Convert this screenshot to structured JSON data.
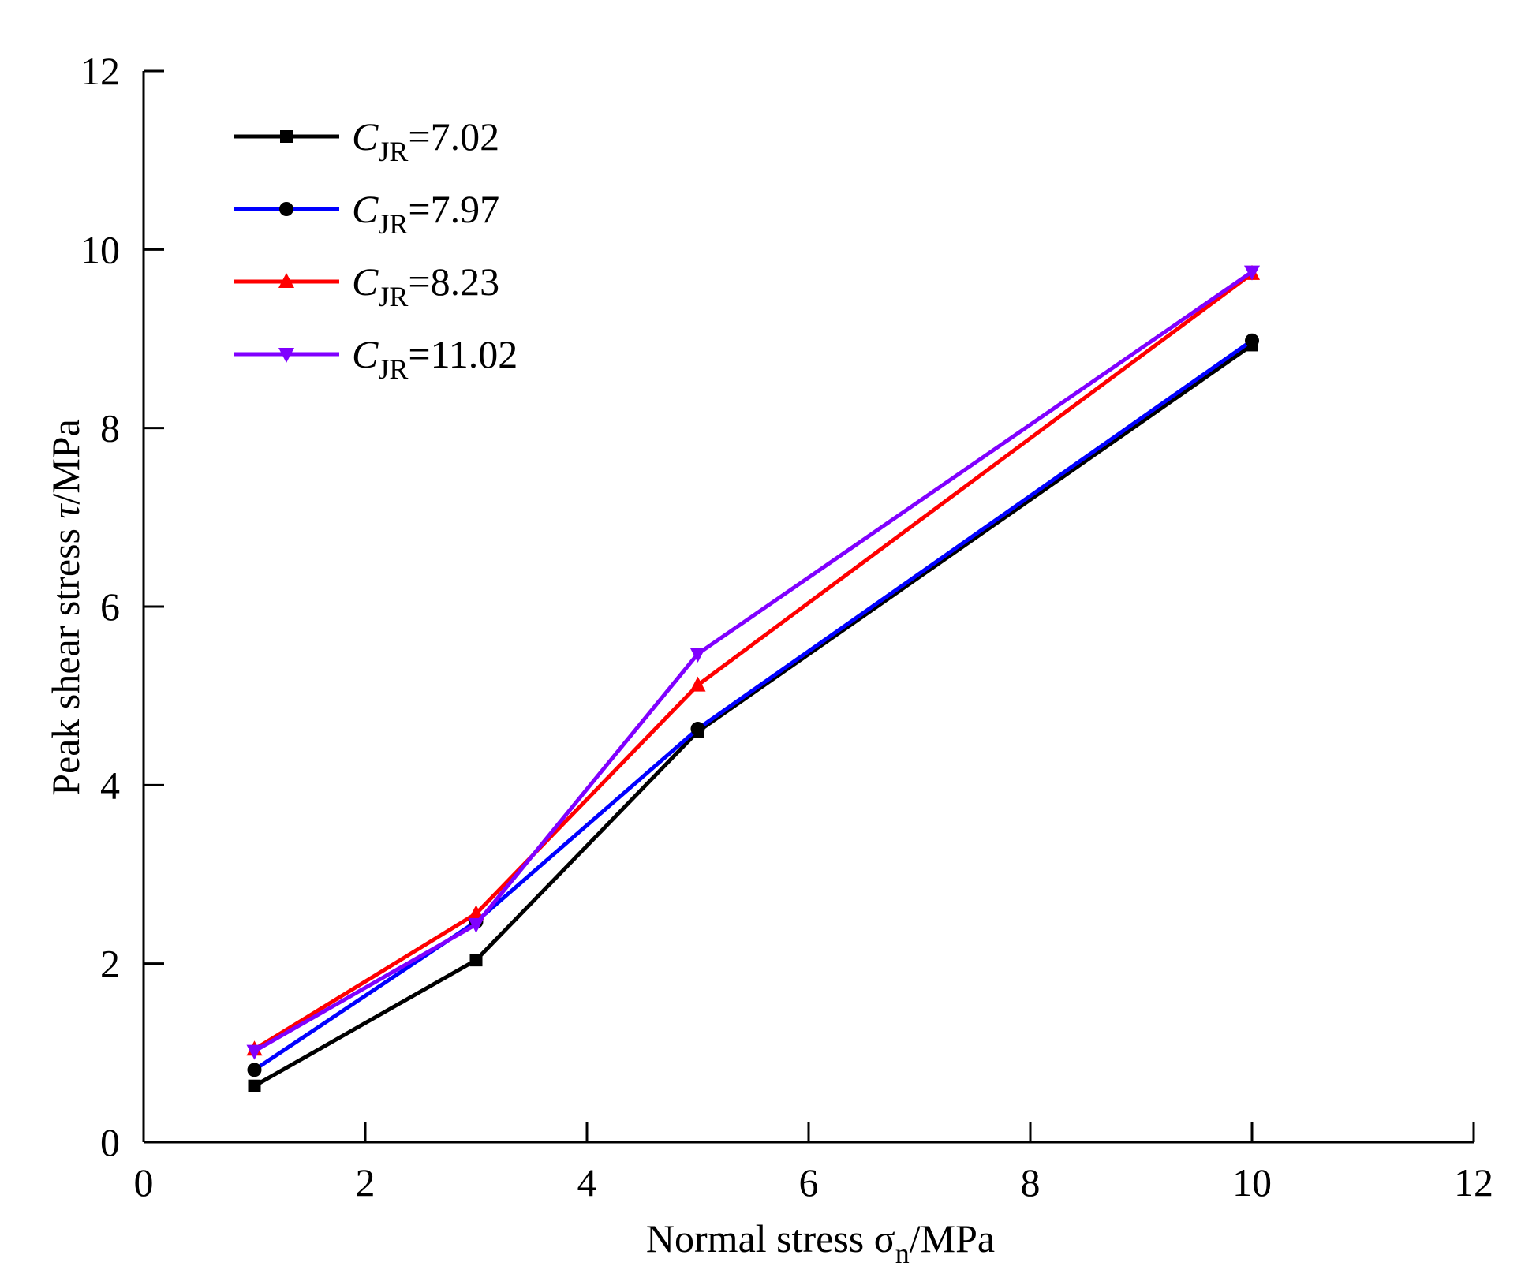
{
  "chart_data": {
    "type": "line",
    "title": "",
    "xlabel": {
      "prefix": "Normal stress ",
      "symbol": "σ",
      "sub": "n",
      "suffix": "/MPa"
    },
    "ylabel": {
      "prefix": "Peak shear stress ",
      "symbol": "τ",
      "suffix": "/MPa"
    },
    "xlim": [
      0,
      12
    ],
    "ylim": [
      0,
      12
    ],
    "xticks": [
      "0",
      "2",
      "4",
      "6",
      "8",
      "10",
      "12"
    ],
    "yticks": [
      "0",
      "2",
      "4",
      "6",
      "8",
      "10",
      "12"
    ],
    "grid": false,
    "legend_position": "top-left",
    "x": [
      1,
      3,
      5,
      10
    ],
    "series": [
      {
        "name": "C_JR=7.02",
        "label_main": "C",
        "label_sub": "JR",
        "label_value": "=7.02",
        "color": "#000000",
        "marker": "square",
        "values": [
          0.63,
          2.04,
          4.6,
          8.93
        ]
      },
      {
        "name": "C_JR=7.97",
        "label_main": "C",
        "label_sub": "JR",
        "label_value": "=7.97",
        "color": "#0000ff",
        "marker": "circle",
        "values": [
          0.81,
          2.47,
          4.63,
          8.98
        ]
      },
      {
        "name": "C_JR=8.23",
        "label_main": "C",
        "label_sub": "JR",
        "label_value": "=8.23",
        "color": "#ff0000",
        "marker": "triangle-up",
        "values": [
          1.04,
          2.56,
          5.12,
          9.73
        ]
      },
      {
        "name": "C_JR=11.02",
        "label_main": "C",
        "label_sub": "JR",
        "label_value": "=11.02",
        "color": "#8000ff",
        "marker": "triangle-down",
        "values": [
          1.02,
          2.44,
          5.47,
          9.75
        ]
      }
    ]
  }
}
